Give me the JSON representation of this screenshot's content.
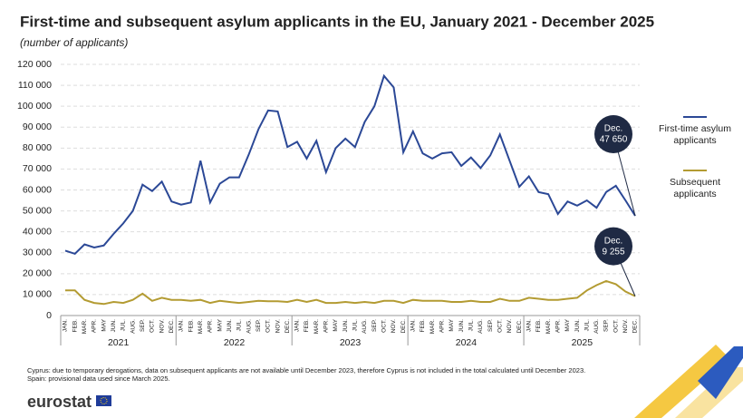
{
  "chart_data": {
    "type": "line",
    "title": "First-time and subsequent asylum applicants in the EU, January 2021 - December 2025",
    "subtitle": "(number of applicants)",
    "categories": [
      "JAN.",
      "FEB.",
      "MAR.",
      "APR.",
      "MAY",
      "JUN.",
      "JUL.",
      "AUG.",
      "SEP.",
      "OCT.",
      "NOV.",
      "DEC.",
      "JAN.",
      "FEB.",
      "MAR.",
      "APR.",
      "MAY",
      "JUN.",
      "JUL.",
      "AUG.",
      "SEP.",
      "OCT.",
      "NOV.",
      "DEC.",
      "JAN.",
      "FEB.",
      "MAR.",
      "APR.",
      "MAY",
      "JUN.",
      "JUL.",
      "AUG.",
      "SEP.",
      "OCT.",
      "NOV.",
      "DEC.",
      "JAN.",
      "FEB.",
      "MAR.",
      "APR.",
      "MAY",
      "JUN.",
      "JUL.",
      "AUG.",
      "SEP.",
      "OCT.",
      "NOV.",
      "DEC.",
      "JAN.",
      "FEB.",
      "MAR.",
      "APR.",
      "MAY",
      "JUN.",
      "JUL.",
      "AUG.",
      "SEP.",
      "OCT.",
      "NOV.",
      "DEC."
    ],
    "year_groups": [
      "2021",
      "2022",
      "2023",
      "2024",
      "2025"
    ],
    "series": [
      {
        "name": "First-time asylum applicants",
        "color": "#2b4896",
        "values": [
          31000,
          29500,
          34000,
          32500,
          33500,
          39000,
          44000,
          50000,
          62500,
          59500,
          64000,
          54500,
          53000,
          54000,
          74000,
          54000,
          63000,
          66000,
          66000,
          77000,
          89000,
          98000,
          97500,
          80500,
          83000,
          75000,
          83500,
          68500,
          80000,
          84500,
          80500,
          92500,
          100000,
          114500,
          109000,
          78000,
          88000,
          77500,
          75000,
          77500,
          78000,
          71500,
          75500,
          70500,
          76500,
          86500,
          74000,
          61500,
          66500,
          59000,
          58000,
          48500,
          54500,
          52500,
          55000,
          51500,
          59000,
          62000,
          55000,
          47650
        ]
      },
      {
        "name": "Subsequent applicants",
        "color": "#b39b32",
        "values": [
          12000,
          12000,
          7500,
          6000,
          5500,
          6500,
          6000,
          7500,
          10500,
          7000,
          8500,
          7500,
          7500,
          7000,
          7500,
          6000,
          7000,
          6500,
          6000,
          6500,
          7000,
          6800,
          6800,
          6500,
          7500,
          6500,
          7500,
          6000,
          6000,
          6500,
          6000,
          6500,
          6000,
          7000,
          7000,
          6000,
          7500,
          7000,
          7000,
          7000,
          6500,
          6500,
          7000,
          6500,
          6500,
          8000,
          7000,
          7000,
          8500,
          8000,
          7500,
          7500,
          8000,
          8500,
          12000,
          14500,
          16500,
          15000,
          11500,
          9255
        ]
      }
    ],
    "annotations": [
      {
        "series": 0,
        "lines": [
          "Dec.",
          "47 650"
        ]
      },
      {
        "series": 1,
        "lines": [
          "Dec.",
          "9 255"
        ]
      }
    ],
    "ylim": [
      0,
      120000
    ],
    "yticks": [
      0,
      {
        "value": 10000,
        "label": "10 000"
      },
      {
        "value": 20000,
        "label": "20 000"
      },
      {
        "value": 30000,
        "label": "30 000"
      },
      {
        "value": 40000,
        "label": "40 000"
      },
      {
        "value": 50000,
        "label": "50 000"
      },
      {
        "value": 60000,
        "label": "60 000"
      },
      {
        "value": 70000,
        "label": "70 000"
      },
      {
        "value": 80000,
        "label": "80 000"
      },
      {
        "value": 90000,
        "label": "90 000"
      },
      {
        "value": 100000,
        "label": "100 000"
      },
      {
        "value": 110000,
        "label": "110 000"
      },
      {
        "value": 120000,
        "label": "120 000"
      }
    ],
    "grid": true,
    "notes": [
      "Cyprus: due to temporary derogations, data on subsequent applicants are not available until December 2023, therefore Cyprus is not included in the total calculated until December 2023.",
      "Spain: provisional data used since March 2025."
    ],
    "source": "eurostat"
  }
}
